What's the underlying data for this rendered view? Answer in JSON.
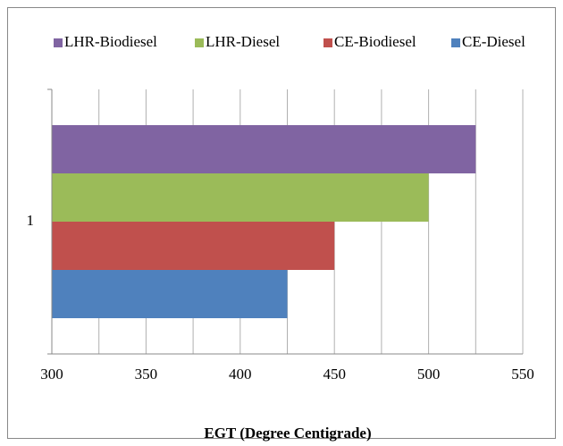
{
  "chart_data": {
    "type": "barh",
    "categories": [
      "1"
    ],
    "series": [
      {
        "name": "LHR-Biodiesel",
        "color": "#8064a2",
        "values": [
          525
        ]
      },
      {
        "name": "LHR-Diesel",
        "color": "#9bbb59",
        "values": [
          500
        ]
      },
      {
        "name": "CE-Biodiesel",
        "color": "#c0504d",
        "values": [
          450
        ]
      },
      {
        "name": "CE-Diesel",
        "color": "#4f81bd",
        "values": [
          425
        ]
      }
    ],
    "xlim": [
      300,
      550
    ],
    "xticks": [
      300,
      350,
      400,
      450,
      500,
      550
    ],
    "x_minor_ticks": [
      325,
      375,
      425,
      475,
      525
    ],
    "xlabel": "EGT (Degree Centigrade)",
    "grid": true,
    "legend": "top"
  }
}
